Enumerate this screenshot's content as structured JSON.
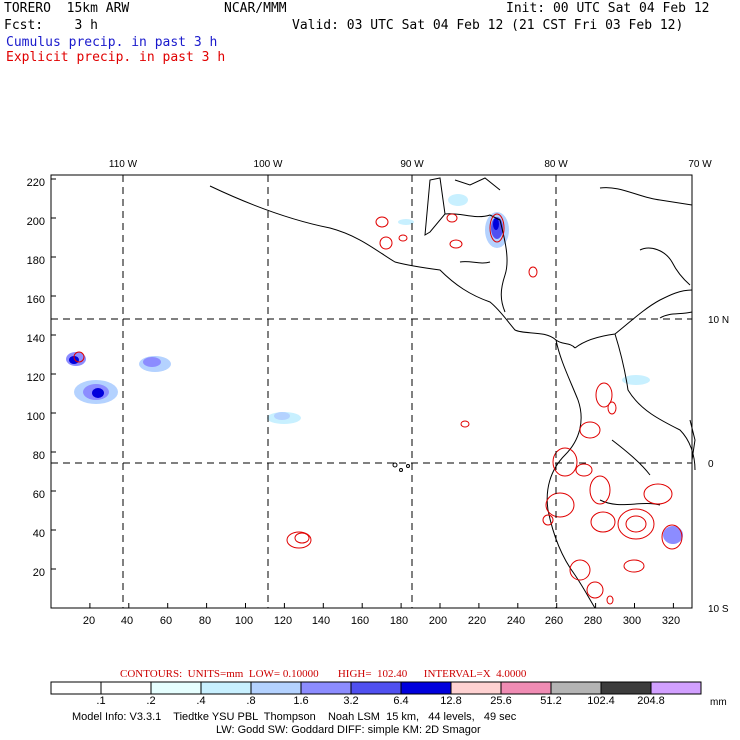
{
  "header": {
    "model": "TORERO  15km ARW",
    "center": "NCAR/MMM",
    "init": "Init: 00 UTC Sat 04 Feb 12",
    "fcst": "Fcst:    3 h",
    "valid": "Valid: 03 UTC Sat 04 Feb 12 (21 CST Fri 03 Feb 12)"
  },
  "legend": {
    "cumulus": "Cumulus precip. in past 3 h",
    "explicit": "Explicit precip. in past 3 h",
    "cumulus_color": "#1a1acc",
    "explicit_color": "#e00000"
  },
  "map": {
    "top_lon_labels": [
      "110 W",
      "100 W",
      "90 W",
      "80 W",
      "70 W"
    ],
    "right_lat_labels": [
      "10 N",
      "0",
      "10 S"
    ],
    "y_ticks": [
      "20",
      "40",
      "60",
      "80",
      "100",
      "120",
      "140",
      "160",
      "180",
      "200",
      "220"
    ],
    "x_ticks": [
      "20",
      "40",
      "60",
      "80",
      "100",
      "120",
      "140",
      "160",
      "180",
      "200",
      "220",
      "240",
      "260",
      "280",
      "300",
      "320"
    ]
  },
  "contours_line": {
    "label": "CONTOURS:  UNITS=mm  LOW= 0.10000       HIGH=  102.40      INTERVAL=X  4.0000"
  },
  "colorbar": {
    "colors": [
      "#ffffff",
      "#ffffff",
      "#e6ffff",
      "#c8f0ff",
      "#b4d2ff",
      "#8c8cff",
      "#5050f0",
      "#0000dc",
      "#ffd2d2",
      "#f08cb4",
      "#b4b4b4",
      "#3c3c3c",
      "#d2a0ff"
    ],
    "labels": [
      ".1",
      ".2",
      ".4",
      ".8",
      "1.6",
      "3.2",
      "6.4",
      "12.8",
      "25.6",
      "51.2",
      "102.4",
      "204.8"
    ],
    "unit": "mm"
  },
  "footer": {
    "line1": "Model Info: V3.3.1    Tiedtke YSU PBL  Thompson    Noah LSM  15 km,   44 levels,   49 sec",
    "line2": "LW: Godd SW: Goddard DIFF: simple KM: 2D Smagor"
  }
}
